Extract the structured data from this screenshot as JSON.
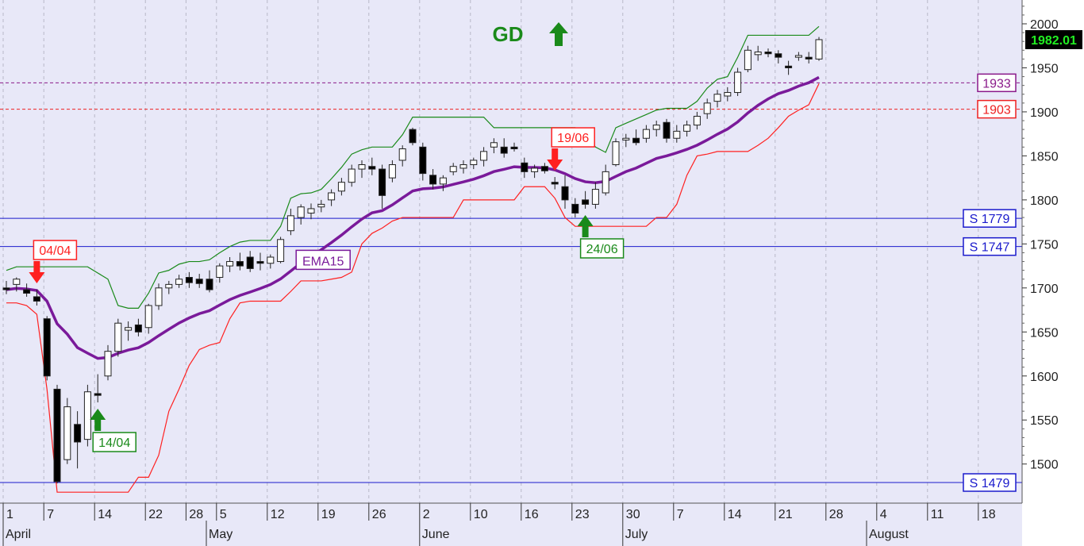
{
  "chart_data": {
    "type": "candlestick",
    "title": "",
    "signal": {
      "text": "GD",
      "direction": "up",
      "color": "#1a8a1a"
    },
    "y_axis": {
      "min": 1470,
      "max": 2030,
      "ticks": [
        1500,
        1550,
        1600,
        1650,
        1700,
        1750,
        1800,
        1850,
        1900,
        1950,
        2000
      ]
    },
    "last_price": {
      "text": "1982.01",
      "value": 1982.01
    },
    "x_axis": {
      "day_ticks": [
        {
          "i": 0,
          "label": "1"
        },
        {
          "i": 4,
          "label": "7"
        },
        {
          "i": 9,
          "label": "14"
        },
        {
          "i": 14,
          "label": "22"
        },
        {
          "i": 18,
          "label": "28"
        },
        {
          "i": 21,
          "label": "5"
        },
        {
          "i": 26,
          "label": "12"
        },
        {
          "i": 31,
          "label": "19"
        },
        {
          "i": 36,
          "label": "26"
        },
        {
          "i": 41,
          "label": "2"
        },
        {
          "i": 46,
          "label": "10"
        },
        {
          "i": 51,
          "label": "16"
        },
        {
          "i": 56,
          "label": "23"
        },
        {
          "i": 61,
          "label": "30"
        },
        {
          "i": 66,
          "label": "7"
        },
        {
          "i": 71,
          "label": "14"
        },
        {
          "i": 76,
          "label": "21"
        },
        {
          "i": 81,
          "label": "28"
        },
        {
          "i": 86,
          "label": "4"
        },
        {
          "i": 91,
          "label": "11"
        },
        {
          "i": 96,
          "label": "18"
        }
      ],
      "months": [
        {
          "i": 0,
          "label": "April"
        },
        {
          "i": 20,
          "label": "May"
        },
        {
          "i": 41,
          "label": "June"
        },
        {
          "i": 61,
          "label": "July"
        },
        {
          "i": 85,
          "label": "August"
        }
      ]
    },
    "candles": [
      [
        1700,
        1708,
        1693,
        1698
      ],
      [
        1704,
        1712,
        1696,
        1710
      ],
      [
        1698,
        1705,
        1690,
        1694
      ],
      [
        1690,
        1698,
        1680,
        1685
      ],
      [
        1665,
        1668,
        1595,
        1600
      ],
      [
        1585,
        1590,
        1478,
        1480
      ],
      [
        1505,
        1575,
        1500,
        1565
      ],
      [
        1545,
        1560,
        1495,
        1525
      ],
      [
        1528,
        1590,
        1520,
        1582
      ],
      [
        1580,
        1602,
        1570,
        1578
      ],
      [
        1600,
        1635,
        1595,
        1628
      ],
      [
        1628,
        1665,
        1622,
        1660
      ],
      [
        1652,
        1662,
        1640,
        1655
      ],
      [
        1658,
        1665,
        1645,
        1650
      ],
      [
        1655,
        1682,
        1648,
        1680
      ],
      [
        1680,
        1705,
        1675,
        1700
      ],
      [
        1700,
        1708,
        1693,
        1704
      ],
      [
        1704,
        1715,
        1700,
        1710
      ],
      [
        1712,
        1718,
        1700,
        1706
      ],
      [
        1710,
        1716,
        1700,
        1705
      ],
      [
        1710,
        1720,
        1695,
        1698
      ],
      [
        1712,
        1728,
        1706,
        1725
      ],
      [
        1725,
        1735,
        1718,
        1730
      ],
      [
        1730,
        1740,
        1720,
        1725
      ],
      [
        1735,
        1742,
        1718,
        1722
      ],
      [
        1730,
        1740,
        1720,
        1728
      ],
      [
        1728,
        1738,
        1722,
        1735
      ],
      [
        1730,
        1758,
        1728,
        1755
      ],
      [
        1765,
        1790,
        1760,
        1782
      ],
      [
        1780,
        1795,
        1772,
        1792
      ],
      [
        1785,
        1796,
        1778,
        1790
      ],
      [
        1792,
        1800,
        1786,
        1795
      ],
      [
        1800,
        1812,
        1793,
        1808
      ],
      [
        1810,
        1825,
        1805,
        1820
      ],
      [
        1820,
        1840,
        1815,
        1835
      ],
      [
        1835,
        1845,
        1825,
        1840
      ],
      [
        1838,
        1848,
        1828,
        1835
      ],
      [
        1835,
        1840,
        1790,
        1805
      ],
      [
        1825,
        1845,
        1820,
        1840
      ],
      [
        1845,
        1862,
        1838,
        1858
      ],
      [
        1880,
        1882,
        1862,
        1865
      ],
      [
        1860,
        1865,
        1822,
        1830
      ],
      [
        1828,
        1835,
        1812,
        1818
      ],
      [
        1818,
        1828,
        1810,
        1825
      ],
      [
        1832,
        1842,
        1828,
        1838
      ],
      [
        1836,
        1845,
        1830,
        1840
      ],
      [
        1840,
        1848,
        1835,
        1845
      ],
      [
        1845,
        1860,
        1838,
        1855
      ],
      [
        1860,
        1870,
        1853,
        1865
      ],
      [
        1860,
        1870,
        1848,
        1853
      ],
      [
        1860,
        1865,
        1855,
        1858
      ],
      [
        1842,
        1848,
        1825,
        1832
      ],
      [
        1832,
        1840,
        1825,
        1836
      ],
      [
        1838,
        1842,
        1830,
        1833
      ],
      [
        1820,
        1826,
        1812,
        1818
      ],
      [
        1815,
        1828,
        1790,
        1800
      ],
      [
        1795,
        1802,
        1780,
        1785
      ],
      [
        1800,
        1810,
        1790,
        1795
      ],
      [
        1795,
        1820,
        1790,
        1812
      ],
      [
        1808,
        1840,
        1805,
        1832
      ],
      [
        1840,
        1870,
        1838,
        1866
      ],
      [
        1868,
        1875,
        1860,
        1870
      ],
      [
        1870,
        1880,
        1862,
        1865
      ],
      [
        1870,
        1885,
        1865,
        1880
      ],
      [
        1880,
        1890,
        1872,
        1885
      ],
      [
        1888,
        1892,
        1865,
        1870
      ],
      [
        1870,
        1885,
        1865,
        1878
      ],
      [
        1878,
        1890,
        1872,
        1885
      ],
      [
        1885,
        1900,
        1880,
        1895
      ],
      [
        1898,
        1915,
        1892,
        1910
      ],
      [
        1912,
        1925,
        1905,
        1920
      ],
      [
        1918,
        1928,
        1912,
        1922
      ],
      [
        1922,
        1950,
        1918,
        1945
      ],
      [
        1948,
        1975,
        1945,
        1970
      ],
      [
        1965,
        1975,
        1958,
        1968
      ],
      [
        1968,
        1972,
        1962,
        1966
      ],
      [
        1966,
        1970,
        1955,
        1962
      ],
      [
        1952,
        1958,
        1942,
        1950
      ],
      [
        1962,
        1968,
        1958,
        1964
      ],
      [
        1962,
        1968,
        1955,
        1960
      ],
      [
        1960,
        1985,
        1958,
        1982
      ]
    ],
    "candles_note": "each candle: [open, high, low, close]",
    "indicators": [
      {
        "name": "EMA15",
        "color": "#7a1a9a"
      },
      {
        "name": "upper-band",
        "color": "#1a8a1a"
      },
      {
        "name": "lower-band",
        "color": "#ff2020"
      }
    ],
    "horizontal_lines": [
      {
        "label": "1933",
        "value": 1933,
        "color": "#8a1a8a",
        "style": "dashed"
      },
      {
        "label": "1903",
        "value": 1903,
        "color": "#ee2020",
        "style": "dashed"
      },
      {
        "label": "S 1779",
        "value": 1779,
        "color": "#1a1acc",
        "style": "solid"
      },
      {
        "label": "S 1747",
        "value": 1747,
        "color": "#1a1acc",
        "style": "solid"
      },
      {
        "label": "S 1479",
        "value": 1479,
        "color": "#1a1acc",
        "style": "solid"
      }
    ],
    "signals": [
      {
        "label": "04/04",
        "direction": "down",
        "i": 3,
        "color": "#ff2020"
      },
      {
        "label": "14/04",
        "direction": "up",
        "i": 9,
        "color": "#1a8a1a"
      },
      {
        "label": "19/06",
        "direction": "down",
        "i": 54,
        "color": "#ff2020"
      },
      {
        "label": "24/06",
        "direction": "up",
        "i": 57,
        "color": "#1a8a1a"
      }
    ],
    "ema_label": "EMA15",
    "grid": true
  }
}
